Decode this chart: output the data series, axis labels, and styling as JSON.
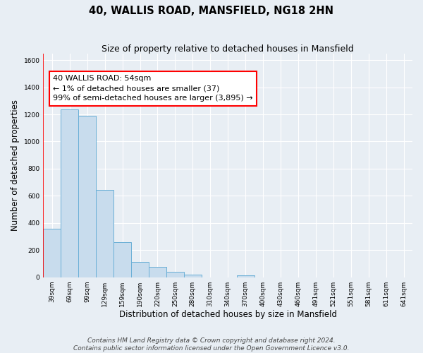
{
  "title": "40, WALLIS ROAD, MANSFIELD, NG18 2HN",
  "subtitle": "Size of property relative to detached houses in Mansfield",
  "xlabel": "Distribution of detached houses by size in Mansfield",
  "ylabel": "Number of detached properties",
  "categories": [
    "39sqm",
    "69sqm",
    "99sqm",
    "129sqm",
    "159sqm",
    "190sqm",
    "220sqm",
    "250sqm",
    "280sqm",
    "310sqm",
    "340sqm",
    "370sqm",
    "400sqm",
    "430sqm",
    "460sqm",
    "491sqm",
    "521sqm",
    "551sqm",
    "581sqm",
    "611sqm",
    "641sqm"
  ],
  "bar_values": [
    355,
    1235,
    1190,
    645,
    260,
    115,
    75,
    38,
    18,
    0,
    0,
    15,
    0,
    0,
    0,
    0,
    0,
    0,
    0,
    0,
    0
  ],
  "bar_color": "#c8dced",
  "bar_edge_color": "#6aafd6",
  "marker_label_line1": "40 WALLIS ROAD: 54sqm",
  "marker_label_line2": "← 1% of detached houses are smaller (37)",
  "marker_label_line3": "99% of semi-detached houses are larger (3,895) →",
  "marker_color": "red",
  "ylim": [
    0,
    1650
  ],
  "yticks": [
    0,
    200,
    400,
    600,
    800,
    1000,
    1200,
    1400,
    1600
  ],
  "footer_line1": "Contains HM Land Registry data © Crown copyright and database right 2024.",
  "footer_line2": "Contains public sector information licensed under the Open Government Licence v3.0.",
  "bg_color": "#e8eef4",
  "plot_bg_color": "#e8eef4",
  "grid_color": "#ffffff",
  "title_fontsize": 10.5,
  "subtitle_fontsize": 9,
  "axis_label_fontsize": 8.5,
  "tick_fontsize": 6.5,
  "annotation_fontsize": 8,
  "footer_fontsize": 6.5
}
